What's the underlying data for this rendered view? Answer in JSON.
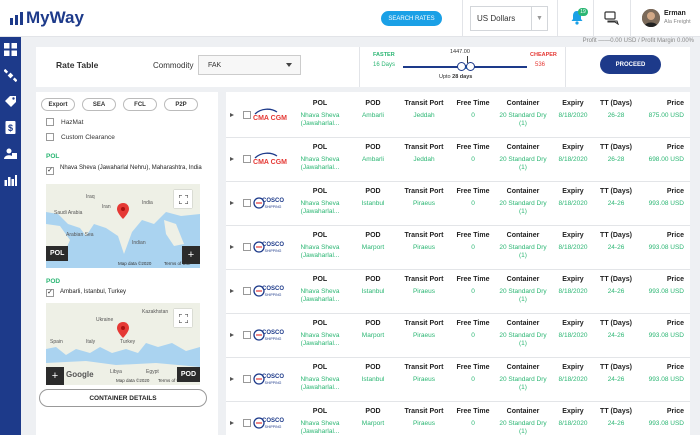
{
  "header": {
    "logo_text": "MyWay",
    "search_rates_label": "SEARCH RATES",
    "currency": "US Dollars",
    "notification_count": "19",
    "user": {
      "name": "Erman",
      "company": "Ala Freight"
    }
  },
  "profit_line": "Profit ——0.00 USD / Profit Margin 0.00%",
  "filters": {
    "title": "Rate Table",
    "commodity_label": "Commodity",
    "commodity_value": "FAK",
    "faster_label": "FASTER",
    "faster_days": "16 Days",
    "cheaper_label": "CHEAPER",
    "cheaper_value": "536",
    "slider_value": "1447.00",
    "upto_prefix": "Upto ",
    "upto_days": "28 days",
    "proceed_label": "PROCEED"
  },
  "left_panel": {
    "modes": [
      "Export",
      "SEA",
      "FCL",
      "P2P"
    ],
    "hazmat_label": "HazMat",
    "custom_clearance_label": "Custom Clearance",
    "pol_label": "POL",
    "pol_value": "Nhava Sheva (Jawaharlal Nehru), Maharashtra, India",
    "pol_map_tag": "POL",
    "pol_map_footer": "Map data ©2020",
    "pol_map_terms": "Terms of Use",
    "pod_label": "POD",
    "pod_value": "Ambarli, Istanbul, Turkey",
    "pod_map_tag": "POD",
    "pod_map_footer": "Map data ©2020",
    "pod_map_terms": "Terms of Use",
    "google_label": "Google",
    "container_details_label": "CONTAINER DETAILS"
  },
  "columns": {
    "pol": "POL",
    "pod": "POD",
    "transit": "Transit Port",
    "free_time": "Free Time",
    "container": "Container",
    "expiry": "Expiry",
    "tt": "TT (Days)",
    "price": "Price"
  },
  "rows": [
    {
      "carrier": "CMA CGM",
      "pol": "Nhava Sheva (Jawaharlal...",
      "pod": "Ambarli",
      "transit": "Jeddah",
      "free_time": "0",
      "container": "20 Standard Dry (1)",
      "expiry": "8/18/2020",
      "tt": "26-28",
      "price": "875.00 USD"
    },
    {
      "carrier": "CMA CGM",
      "pol": "Nhava Sheva (Jawaharlal...",
      "pod": "Ambarli",
      "transit": "Jeddah",
      "free_time": "0",
      "container": "20 Standard Dry (1)",
      "expiry": "8/18/2020",
      "tt": "26-28",
      "price": "698.00 USD"
    },
    {
      "carrier": "COSCO SHIPPING",
      "pol": "Nhava Sheva (Jawaharlal...",
      "pod": "Istanbul",
      "transit": "Piraeus",
      "free_time": "0",
      "container": "20 Standard Dry (1)",
      "expiry": "8/18/2020",
      "tt": "24-26",
      "price": "993.08 USD"
    },
    {
      "carrier": "COSCO SHIPPING",
      "pol": "Nhava Sheva (Jawaharlal...",
      "pod": "Marport",
      "transit": "Piraeus",
      "free_time": "0",
      "container": "20 Standard Dry (1)",
      "expiry": "8/18/2020",
      "tt": "24-26",
      "price": "993.08 USD"
    },
    {
      "carrier": "COSCO SHIPPING",
      "pol": "Nhava Sheva (Jawaharlal...",
      "pod": "Istanbul",
      "transit": "Piraeus",
      "free_time": "0",
      "container": "20 Standard Dry (1)",
      "expiry": "8/18/2020",
      "tt": "24-26",
      "price": "993.08 USD"
    },
    {
      "carrier": "COSCO SHIPPING",
      "pol": "Nhava Sheva (Jawaharlal...",
      "pod": "Marport",
      "transit": "Piraeus",
      "free_time": "0",
      "container": "20 Standard Dry (1)",
      "expiry": "8/18/2020",
      "tt": "24-26",
      "price": "993.08 USD"
    },
    {
      "carrier": "COSCO SHIPPING",
      "pol": "Nhava Sheva (Jawaharlal...",
      "pod": "Istanbul",
      "transit": "Piraeus",
      "free_time": "0",
      "container": "20 Standard Dry (1)",
      "expiry": "8/18/2020",
      "tt": "24-26",
      "price": "993.08 USD"
    },
    {
      "carrier": "COSCO SHIPPING",
      "pol": "Nhava Sheva (Jawaharlal...",
      "pod": "Marport",
      "transit": "Piraeus",
      "free_time": "0",
      "container": "20 Standard Dry (1)",
      "expiry": "8/18/2020",
      "tt": "24-26",
      "price": "993.08 USD"
    }
  ],
  "colors": {
    "brand": "#1d3a8a",
    "accent": "#1aa0e6",
    "green": "#2bb673",
    "red": "#e53935"
  },
  "icons": [
    "dashboard-icon",
    "satellite-icon",
    "tag-icon",
    "invoice-icon",
    "user-card-icon",
    "analytics-icon",
    "bell-icon",
    "chat-icon"
  ]
}
